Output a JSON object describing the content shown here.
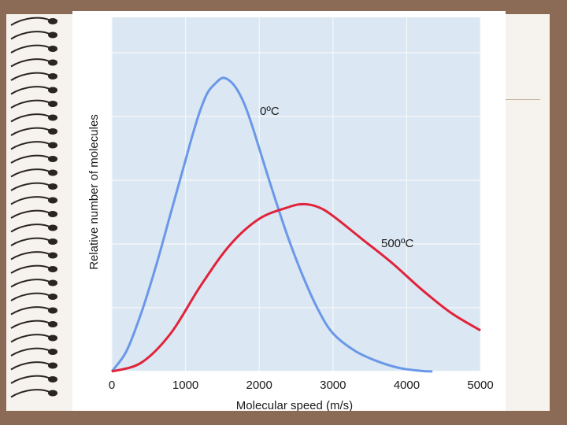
{
  "chart_data": {
    "type": "line",
    "title": "",
    "xlabel": "Molecular speed (m/s)",
    "ylabel": "Relative number of molecules",
    "xlim": [
      0,
      5000
    ],
    "ylim": [
      0,
      1
    ],
    "xticks": [
      "0",
      "1000",
      "2000",
      "3000",
      "4000",
      "5000"
    ],
    "grid": true,
    "series": [
      {
        "name": "0ºC",
        "color": "#6a98e8",
        "x": [
          0,
          200,
          400,
          600,
          800,
          1000,
          1100,
          1200,
          1300,
          1400,
          1500,
          1600,
          1700,
          1800,
          1900,
          2000,
          2200,
          2400,
          2600,
          2800,
          3000,
          3300,
          3600,
          3900,
          4200,
          4350
        ],
        "y": [
          0.0,
          0.07,
          0.2,
          0.36,
          0.54,
          0.72,
          0.81,
          0.89,
          0.95,
          0.98,
          1.0,
          0.99,
          0.96,
          0.91,
          0.84,
          0.76,
          0.6,
          0.45,
          0.32,
          0.21,
          0.13,
          0.07,
          0.035,
          0.012,
          0.002,
          0.0
        ]
      },
      {
        "name": "500ºC",
        "color": "#e0233a",
        "x": [
          0,
          400,
          800,
          1200,
          1600,
          2000,
          2400,
          2600,
          2800,
          3000,
          3400,
          3800,
          4200,
          4600,
          5000
        ],
        "y": [
          0.0,
          0.03,
          0.13,
          0.29,
          0.43,
          0.52,
          0.56,
          0.57,
          0.56,
          0.53,
          0.45,
          0.37,
          0.28,
          0.2,
          0.14
        ]
      }
    ]
  }
}
